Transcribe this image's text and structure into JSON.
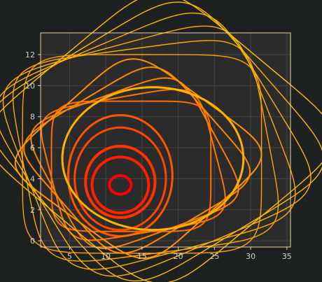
{
  "chart_data": {
    "type": "line",
    "title": "",
    "xlabel": "",
    "ylabel": "",
    "xlim": [
      1,
      35.5
    ],
    "ylim": [
      -0.4,
      13.4
    ],
    "xticks": [
      5,
      10,
      15,
      20,
      25,
      30,
      35
    ],
    "yticks": [
      0,
      2,
      4,
      6,
      8,
      10,
      12
    ],
    "grid": true,
    "legend": "none",
    "colors": {
      "background": "#1e2121",
      "plot_background": "#2b2b2b",
      "axes_frame": "#e6d2a0",
      "grid": "#444444",
      "tick_labels": "#cfcfcf",
      "series_gradient": [
        "#ff0000",
        "#ff5a00",
        "#ff8c00",
        "#ffbe00"
      ]
    },
    "series": [
      {
        "center": [
          12,
          3.6
        ],
        "radius_x": 1.5,
        "radius_y": 0.6,
        "rotation_deg": 0,
        "shape": "ellipse",
        "color": "#ff0000",
        "stroke": 4
      },
      {
        "center": [
          12,
          3.6
        ],
        "radius_x": 3.9,
        "radius_y": 1.8,
        "rotation_deg": 0,
        "shape": "ellipse",
        "color": "#ff1e00",
        "stroke": 4
      },
      {
        "center": [
          12,
          3.8
        ],
        "radius_x": 4.8,
        "radius_y": 2.3,
        "rotation_deg": 5,
        "shape": "ellipse",
        "color": "#ff3200",
        "stroke": 4
      },
      {
        "center": [
          12,
          4.0
        ],
        "radius_x": 6.3,
        "radius_y": 3.3,
        "rotation_deg": 8,
        "shape": "ellipse",
        "color": "#ff4600",
        "stroke": 3
      },
      {
        "center": [
          12,
          4.2
        ],
        "radius_x": 7.2,
        "radius_y": 3.9,
        "rotation_deg": 8,
        "shape": "ellipse",
        "color": "#ff5500",
        "stroke": 3
      },
      {
        "center": [
          13.5,
          4.8
        ],
        "radius_x": 11,
        "radius_y": 4.2,
        "rotation_deg": 0,
        "shape": "square",
        "color": "#ff6a00",
        "stroke": 2
      },
      {
        "center": [
          13.8,
          4.9
        ],
        "radius_x": 11.5,
        "radius_y": 4.4,
        "rotation_deg": 12,
        "shape": "square",
        "color": "#ff7300",
        "stroke": 2
      },
      {
        "center": [
          14.0,
          5.0
        ],
        "radius_x": 12,
        "radius_y": 4.6,
        "rotation_deg": 24,
        "shape": "square",
        "color": "#ff7d00",
        "stroke": 2
      },
      {
        "center": [
          14.3,
          5.2
        ],
        "radius_x": 12.5,
        "radius_y": 4.8,
        "rotation_deg": 36,
        "shape": "square",
        "color": "#ff8700",
        "stroke": 2
      },
      {
        "center": [
          14.5,
          5.3
        ],
        "radius_x": 13.5,
        "radius_y": 5.1,
        "rotation_deg": 48,
        "shape": "square",
        "color": "#ff9100",
        "stroke": 2
      },
      {
        "center": [
          15,
          5.6
        ],
        "radius_x": 16.5,
        "radius_y": 6.4,
        "rotation_deg": 0,
        "shape": "square",
        "color": "#ffa000",
        "stroke": 1.4
      },
      {
        "center": [
          15.5,
          5.8
        ],
        "radius_x": 17,
        "radius_y": 6.6,
        "rotation_deg": 9,
        "shape": "square",
        "color": "#ffa600",
        "stroke": 1.4
      },
      {
        "center": [
          16,
          6.0
        ],
        "radius_x": 17.5,
        "radius_y": 6.8,
        "rotation_deg": 18,
        "shape": "square",
        "color": "#ffac00",
        "stroke": 1.4
      },
      {
        "center": [
          16.5,
          6.2
        ],
        "radius_x": 18,
        "radius_y": 7.0,
        "rotation_deg": 27,
        "shape": "square",
        "color": "#ffb200",
        "stroke": 1.4
      },
      {
        "center": [
          17,
          6.4
        ],
        "radius_x": 18.5,
        "radius_y": 7.2,
        "rotation_deg": 36,
        "shape": "square",
        "color": "#ffb800",
        "stroke": 1.4
      },
      {
        "center": [
          17.5,
          6.6
        ],
        "radius_x": 19,
        "radius_y": 7.4,
        "rotation_deg": 45,
        "shape": "square",
        "color": "#ffbe00",
        "stroke": 1.4
      },
      {
        "center": [
          16.5,
          5.3
        ],
        "radius_x": 12.5,
        "radius_y": 4.6,
        "rotation_deg": 0,
        "shape": "ellipse",
        "color": "#ffb000",
        "stroke": 3
      }
    ]
  }
}
